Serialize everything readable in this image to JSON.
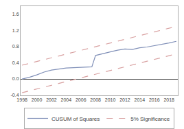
{
  "chart_data": {
    "type": "line",
    "series": [
      {
        "name": "CUSUM of Squares",
        "color": "#8090b8",
        "line_style": "solid",
        "x": [
          1998,
          1999,
          2000,
          2001,
          2002,
          2003,
          2004,
          2005,
          2006,
          2007,
          2007.5,
          2008,
          2009,
          2010,
          2011,
          2012,
          2013,
          2014,
          2015,
          2016,
          2017,
          2018,
          2019
        ],
        "values": [
          0.0,
          0.04,
          0.1,
          0.17,
          0.22,
          0.25,
          0.27,
          0.28,
          0.29,
          0.29,
          0.3,
          0.58,
          0.63,
          0.67,
          0.71,
          0.74,
          0.73,
          0.77,
          0.79,
          0.82,
          0.86,
          0.89,
          0.93
        ]
      },
      {
        "name": "5% Significance",
        "color": "#d8a0a0",
        "line_style": "dashed",
        "x": [
          1998,
          2019
        ],
        "values": [
          0.34,
          1.3
        ]
      },
      {
        "name": "5% Significance",
        "color": "#d8a0a0",
        "line_style": "dashed",
        "x": [
          1998,
          2019
        ],
        "values": [
          -0.34,
          0.62
        ]
      }
    ],
    "xlim": [
      1997.8,
      2019.2
    ],
    "xticks": [
      1998,
      2000,
      2002,
      2004,
      2006,
      2008,
      2010,
      2012,
      2014,
      2016,
      2018
    ],
    "ylim": [
      -0.4,
      1.8
    ],
    "yticks": [
      -0.4,
      {
        "value": 0,
        "label": "0.0"
      },
      0.4,
      0.8,
      1.2,
      1.6
    ],
    "grid": false
  }
}
